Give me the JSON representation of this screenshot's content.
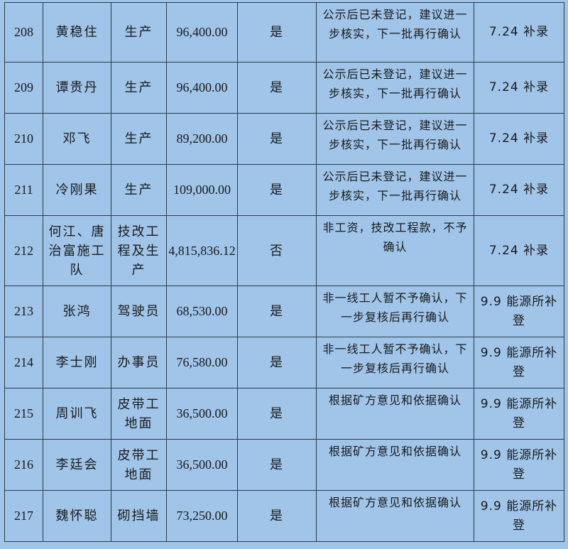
{
  "rows": [
    {
      "no": "208",
      "name": "黄稳住",
      "job": "生产",
      "amount": "96,400.00",
      "confirmed": "是",
      "remark": "公示后已未登记，建议进一步核实，下一批再行确认",
      "note": "7.24 补录"
    },
    {
      "no": "209",
      "name": "谭贵丹",
      "job": "生产",
      "amount": "96,400.00",
      "confirmed": "是",
      "remark": "公示后已未登记，建议进一步核实，下一批再行确认",
      "note": "7.24 补录"
    },
    {
      "no": "210",
      "name": "邓飞",
      "job": "生产",
      "amount": "89,200.00",
      "confirmed": "是",
      "remark": "公示后已未登记，建议进一步核实，下一批再行确认",
      "note": "7.24 补录"
    },
    {
      "no": "211",
      "name": "冷刚果",
      "job": "生产",
      "amount": "109,000.00",
      "confirmed": "是",
      "remark": "公示后已未登记，建议进一步核实，下一批再行确认",
      "note": "7.24 补录"
    },
    {
      "no": "212",
      "name": "何江、唐治富施工队",
      "job": "技改工程及生产",
      "amount": "4,815,836.12",
      "confirmed": "否",
      "remark": "非工资，技改工程款，不予确认",
      "note": "7.24 补录"
    },
    {
      "no": "213",
      "name": "张鸿",
      "job": "驾驶员",
      "amount": "68,530.00",
      "confirmed": "是",
      "remark": "非一线工人暂不予确认，下一步复核后再行确认",
      "note": "9.9 能源所补登"
    },
    {
      "no": "214",
      "name": "李士刚",
      "job": "办事员",
      "amount": "76,580.00",
      "confirmed": "是",
      "remark": "非一线工人暂不予确认，下一步复核后再行确认",
      "note": "9.9 能源所补登"
    },
    {
      "no": "215",
      "name": "周训飞",
      "job": "皮带工地面",
      "amount": "36,500.00",
      "confirmed": "是",
      "remark": "根据矿方意见和依据确认",
      "note": "9.9 能源所补登"
    },
    {
      "no": "216",
      "name": "李廷会",
      "job": "皮带工地面",
      "amount": "36,500.00",
      "confirmed": "是",
      "remark": "根据矿方意见和依据确认",
      "note": "9.9 能源所补登"
    },
    {
      "no": "217",
      "name": "魏怀聪",
      "job": "砌挡墙",
      "amount": "73,250.00",
      "confirmed": "是",
      "remark": "根据矿方意见和依据确认",
      "note": "9.9 能源所补登"
    }
  ]
}
